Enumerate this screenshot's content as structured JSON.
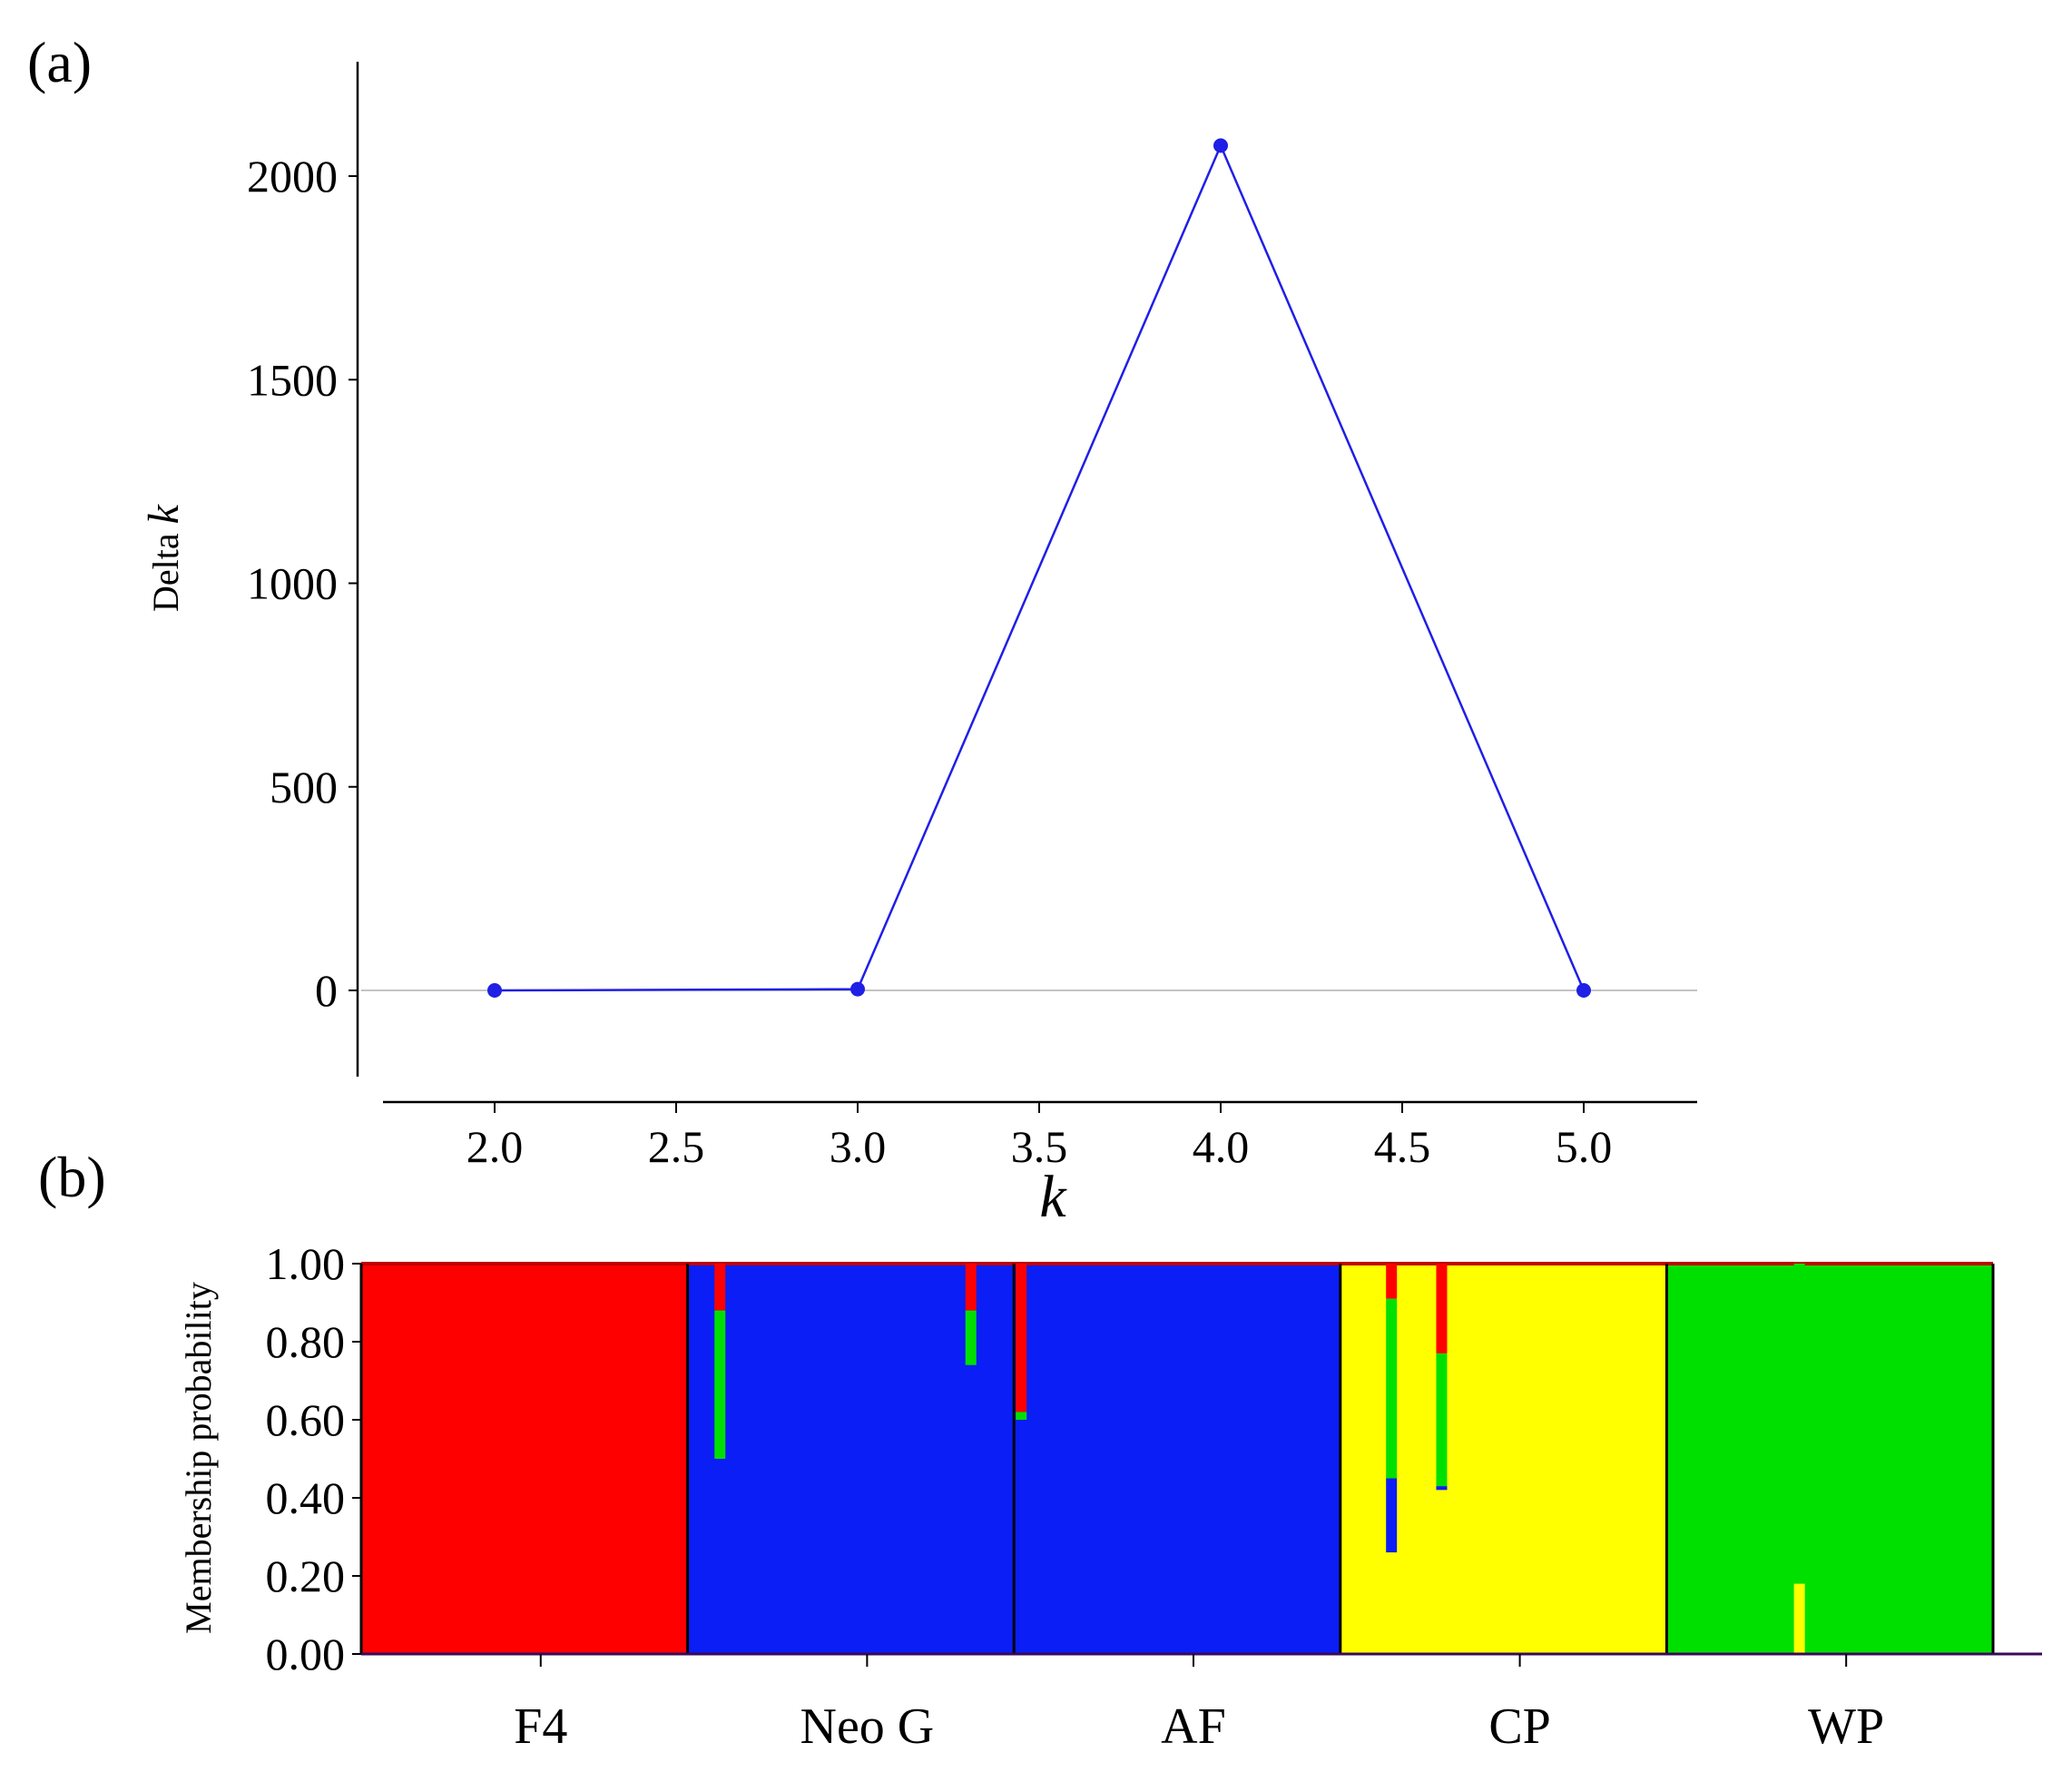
{
  "panel_labels": {
    "a": "(a)",
    "b": "(b)"
  },
  "chart_data": [
    {
      "type": "line",
      "panel": "(a)",
      "xlabel": "k",
      "ylabel_prefix": "Delta",
      "ylabel_var": "k",
      "xlim": [
        1.7,
        5.3
      ],
      "ylim": [
        -200,
        2250
      ],
      "xticks": [
        "2.0",
        "2.5",
        "3.0",
        "3.5",
        "4.0",
        "4.5",
        "5.0"
      ],
      "yticks": [
        "0",
        "500",
        "1000",
        "1500",
        "2000"
      ],
      "zero_line": true,
      "color": "#1f1fe6",
      "series": [
        {
          "x": [
            2.0,
            3.0,
            4.0,
            5.0
          ],
          "y": [
            0,
            3,
            2075,
            0
          ]
        }
      ]
    },
    {
      "type": "bar",
      "panel": "(b)",
      "subtype": "stacked-membership",
      "ylabel": "Membership probability",
      "ylim": [
        0,
        1
      ],
      "yticks": [
        "0.00",
        "0.20",
        "0.40",
        "0.60",
        "0.80",
        "1.00"
      ],
      "groups": [
        "F4",
        "Neo G",
        "AF",
        "CP",
        "WP"
      ],
      "cluster_colors": {
        "red": "#ff0000",
        "blue": "#0a1ef5",
        "yellow": "#ffff00",
        "green": "#00e000"
      },
      "group_main_cluster": [
        "red",
        "blue",
        "blue",
        "yellow",
        "green"
      ],
      "notable_individuals": [
        {
          "group": "Neo G",
          "position": 0.08,
          "red": 0.12,
          "green": 0.38,
          "blue": 0.5
        },
        {
          "group": "Neo G",
          "position": 0.88,
          "red": 0.12,
          "green": 0.14,
          "blue": 0.74
        },
        {
          "group": "AF",
          "position": 0.0,
          "red": 0.38,
          "green": 0.02,
          "blue": 0.6
        },
        {
          "group": "CP",
          "position": 0.14,
          "red": 0.09,
          "green": 0.46,
          "blue": 0.19,
          "yellow": 0.26
        },
        {
          "group": "CP",
          "position": 0.3,
          "red": 0.23,
          "green": 0.34,
          "blue": 0.01,
          "yellow": 0.42
        },
        {
          "group": "WP",
          "position": 0.4,
          "yellow": 0.18,
          "green": 0.82
        }
      ]
    }
  ]
}
